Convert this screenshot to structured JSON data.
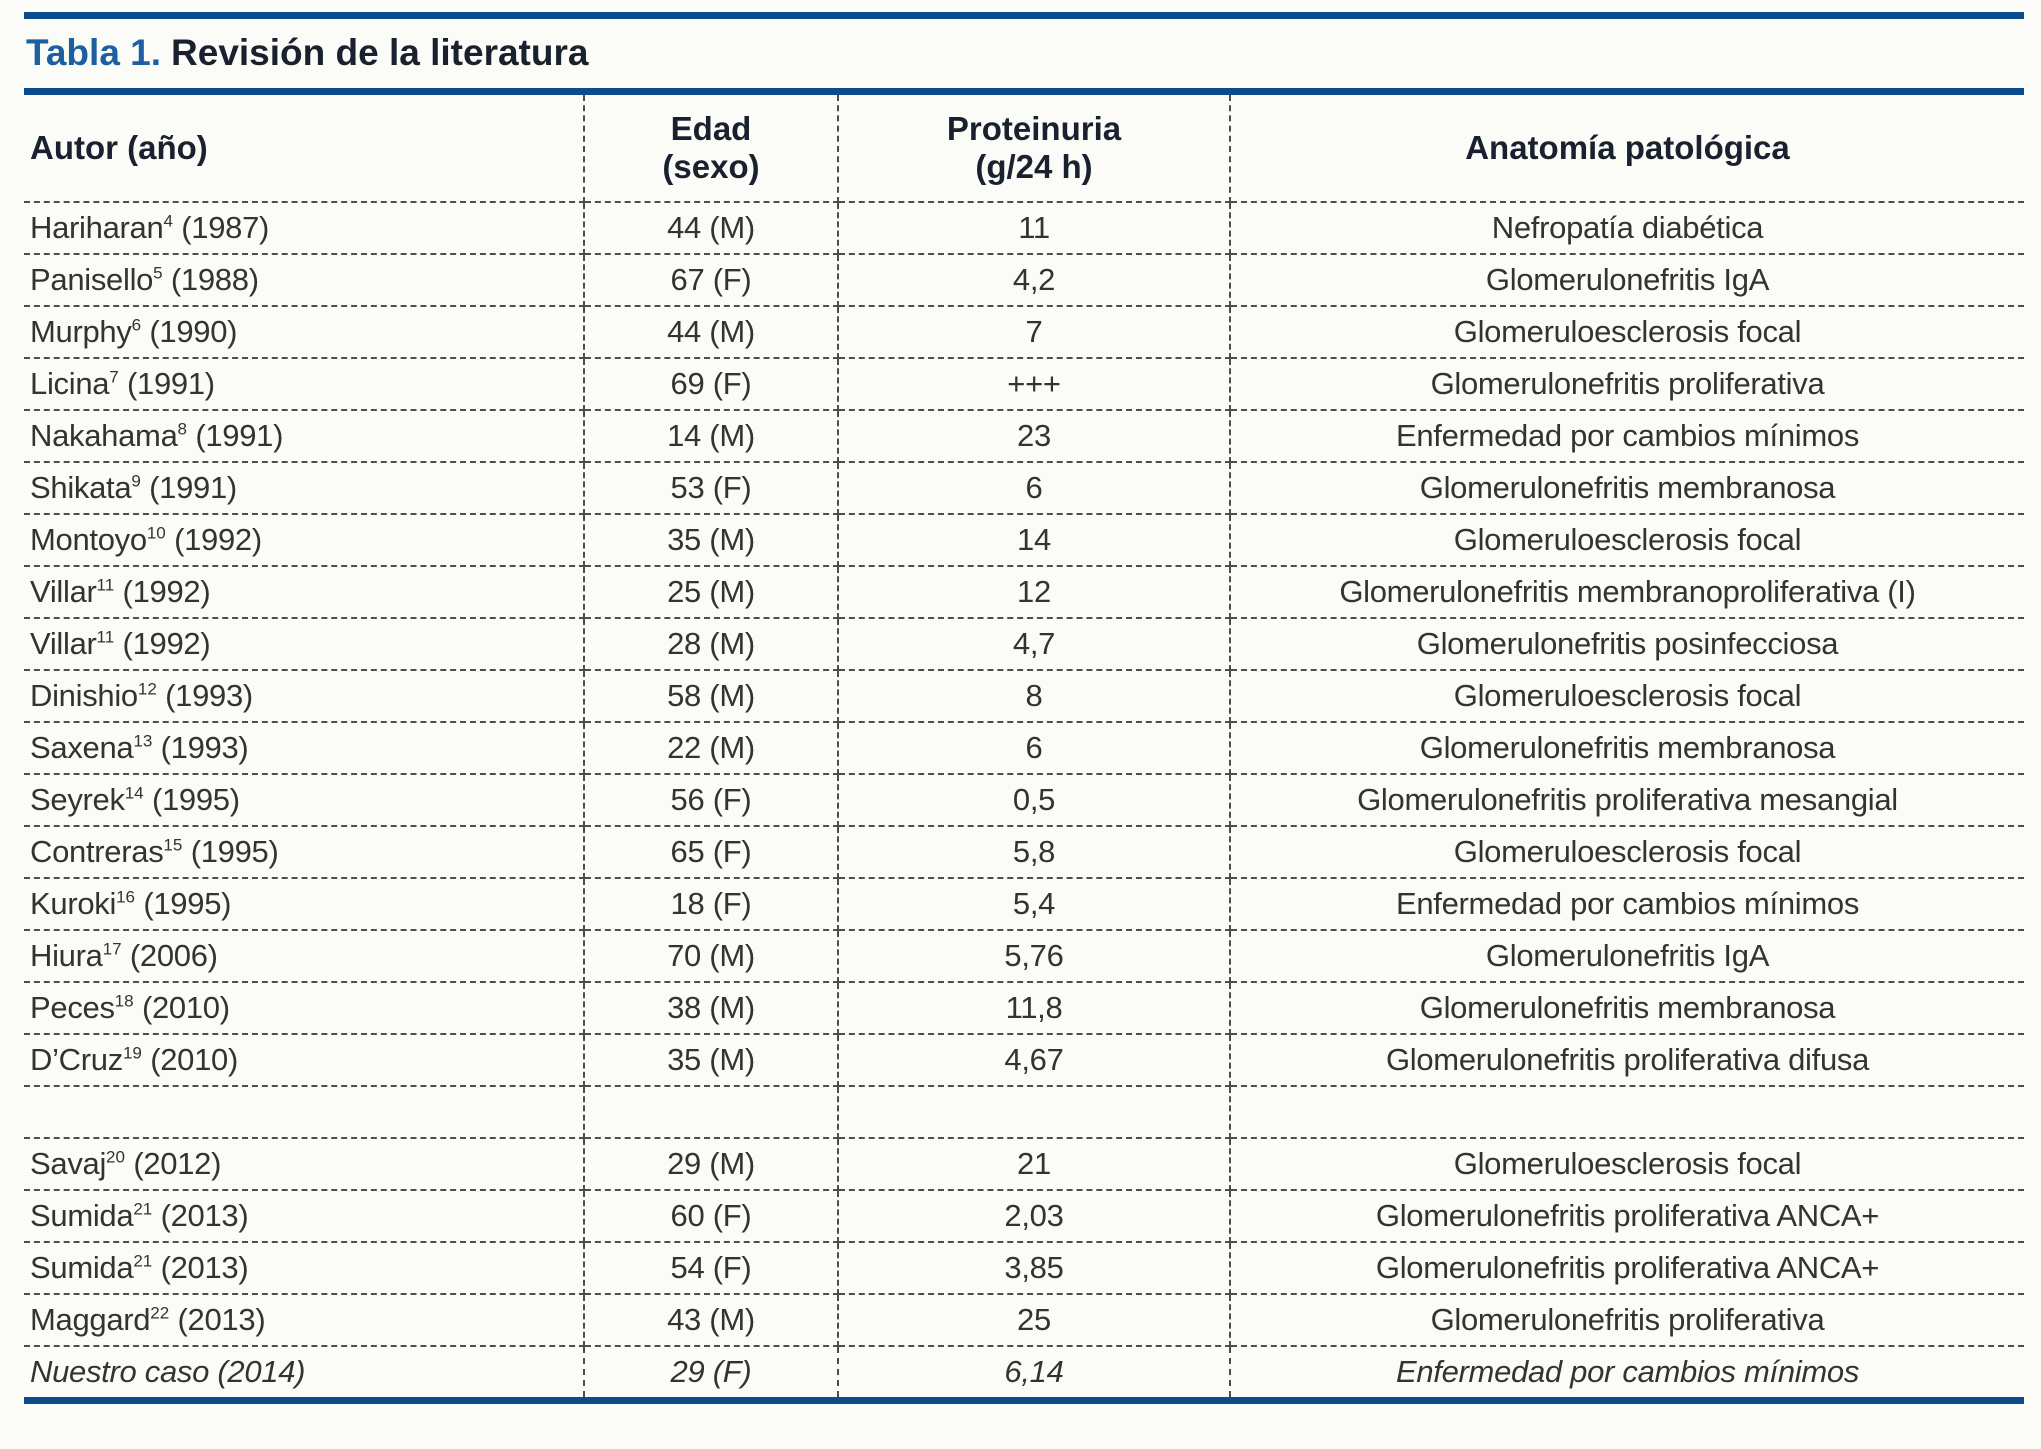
{
  "title": {
    "label": "Tabla 1.",
    "text": "Revisión de la literatura"
  },
  "colors": {
    "rule_blue": "#0d4c8c",
    "title_blue": "#1d5fa0",
    "header_text": "#1a212e",
    "body_text": "#333333",
    "dash_gray": "#4d4d4d",
    "background": "#fbfbf8"
  },
  "table": {
    "headers": {
      "author": "Autor (año)",
      "age_line1": "Edad",
      "age_line2": "(sexo)",
      "proteinuria_line1": "Proteinuria",
      "proteinuria_line2": "(g/24 h)",
      "pathology": "Anatomía patológica"
    },
    "rows": [
      {
        "author": "Hariharan",
        "ref": "4",
        "year": "(1987)",
        "age": "44 (M)",
        "proteinuria": "11",
        "pathology": "Nefropatía diabética"
      },
      {
        "author": "Panisello",
        "ref": "5",
        "year": "(1988)",
        "age": "67 (F)",
        "proteinuria": "4,2",
        "pathology": "Glomerulonefritis IgA"
      },
      {
        "author": "Murphy",
        "ref": "6",
        "year": "(1990)",
        "age": "44 (M)",
        "proteinuria": "7",
        "pathology": "Glomeruloesclerosis focal"
      },
      {
        "author": "Licina",
        "ref": "7",
        "year": "(1991)",
        "age": "69 (F)",
        "proteinuria": "+++",
        "pathology": "Glomerulonefritis proliferativa"
      },
      {
        "author": "Nakahama",
        "ref": "8",
        "year": "(1991)",
        "age": "14 (M)",
        "proteinuria": "23",
        "pathology": "Enfermedad por cambios mínimos"
      },
      {
        "author": "Shikata",
        "ref": "9",
        "year": "(1991)",
        "age": "53 (F)",
        "proteinuria": "6",
        "pathology": "Glomerulonefritis membranosa"
      },
      {
        "author": "Montoyo",
        "ref": "10",
        "year": "(1992)",
        "age": "35 (M)",
        "proteinuria": "14",
        "pathology": "Glomeruloesclerosis focal"
      },
      {
        "author": "Villar",
        "ref": "11",
        "year": "(1992)",
        "age": "25 (M)",
        "proteinuria": "12",
        "pathology": "Glomerulonefritis membranoproliferativa (I)"
      },
      {
        "author": "Villar",
        "ref": "11",
        "year": "(1992)",
        "age": "28 (M)",
        "proteinuria": "4,7",
        "pathology": "Glomerulonefritis posinfecciosa"
      },
      {
        "author": "Dinishio",
        "ref": "12",
        "year": "(1993)",
        "age": "58 (M)",
        "proteinuria": "8",
        "pathology": "Glomeruloesclerosis focal"
      },
      {
        "author": "Saxena",
        "ref": "13",
        "year": "(1993)",
        "age": "22 (M)",
        "proteinuria": "6",
        "pathology": "Glomerulonefritis membranosa"
      },
      {
        "author": "Seyrek",
        "ref": "14",
        "year": "(1995)",
        "age": "56 (F)",
        "proteinuria": "0,5",
        "pathology": "Glomerulonefritis proliferativa mesangial"
      },
      {
        "author": "Contreras",
        "ref": "15",
        "year": "(1995)",
        "age": "65 (F)",
        "proteinuria": "5,8",
        "pathology": "Glomeruloesclerosis focal"
      },
      {
        "author": "Kuroki",
        "ref": "16",
        "year": "(1995)",
        "age": "18 (F)",
        "proteinuria": "5,4",
        "pathology": "Enfermedad por cambios mínimos"
      },
      {
        "author": "Hiura",
        "ref": "17",
        "year": "(2006)",
        "age": "70 (M)",
        "proteinuria": "5,76",
        "pathology": "Glomerulonefritis IgA"
      },
      {
        "author": "Peces",
        "ref": "18",
        "year": "(2010)",
        "age": "38 (M)",
        "proteinuria": "11,8",
        "pathology": "Glomerulonefritis membranosa"
      },
      {
        "author": "D’Cruz",
        "ref": "19",
        "year": "(2010)",
        "age": "35 (M)",
        "proteinuria": "4,67",
        "pathology": "Glomerulonefritis proliferativa difusa"
      },
      {
        "empty": true,
        "author": "",
        "ref": "",
        "year": "",
        "age": "",
        "proteinuria": "",
        "pathology": ""
      },
      {
        "author": "Savaj",
        "ref": "20",
        "year": "(2012)",
        "age": "29 (M)",
        "proteinuria": "21",
        "pathology": "Glomeruloesclerosis focal"
      },
      {
        "author": "Sumida",
        "ref": "21",
        "year": "(2013)",
        "age": "60 (F)",
        "proteinuria": "2,03",
        "pathology": "Glomerulonefritis proliferativa ANCA+"
      },
      {
        "author": "Sumida",
        "ref": "21",
        "year": "(2013)",
        "age": "54 (F)",
        "proteinuria": "3,85",
        "pathology": "Glomerulonefritis proliferativa ANCA+"
      },
      {
        "author": "Maggard",
        "ref": "22",
        "year": "(2013)",
        "age": "43 (M)",
        "proteinuria": "25",
        "pathology": "Glomerulonefritis proliferativa"
      },
      {
        "author": "Nuestro caso",
        "ref": "",
        "year": "(2014)",
        "age": "29 (F)",
        "proteinuria": "6,14",
        "pathology": "Enfermedad por cambios mínimos",
        "style": "italic"
      }
    ]
  }
}
